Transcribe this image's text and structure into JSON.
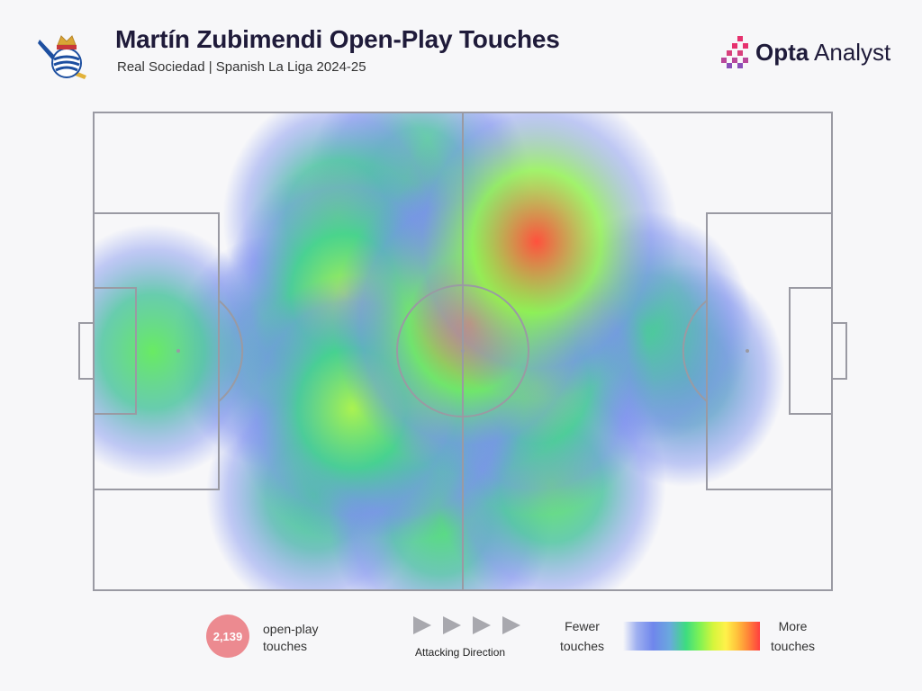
{
  "header": {
    "title": "Martín Zubimendi Open-Play Touches",
    "subtitle": "Real Sociedad | Spanish La Liga 2024-25",
    "brand_bold": "Opta",
    "brand_light": " Analyst",
    "crest_icon": "real-sociedad-crest-icon"
  },
  "chart_data": {
    "type": "heatmap",
    "title": "Martín Zubimendi Open-Play Touches",
    "subtitle": "Real Sociedad | Spanish La Liga 2024-25",
    "pitch": {
      "length": 100,
      "width": 100,
      "attacking_direction": "left-to-right"
    },
    "hotspots": [
      {
        "x": 51,
        "y": 56,
        "intensity": 0.85
      },
      {
        "x": 60,
        "y": 73,
        "intensity": 0.95
      },
      {
        "x": 42,
        "y": 38,
        "intensity": 0.55
      },
      {
        "x": 34,
        "y": 62,
        "intensity": 0.55
      },
      {
        "x": 35,
        "y": 38,
        "intensity": 0.55
      },
      {
        "x": 33,
        "y": 78,
        "intensity": 0.45
      },
      {
        "x": 60,
        "y": 43,
        "intensity": 0.5
      },
      {
        "x": 62,
        "y": 22,
        "intensity": 0.45
      },
      {
        "x": 8,
        "y": 50,
        "intensity": 0.45
      },
      {
        "x": 30,
        "y": 20,
        "intensity": 0.35
      },
      {
        "x": 25,
        "y": 50,
        "intensity": 0.3
      },
      {
        "x": 75,
        "y": 55,
        "intensity": 0.28
      },
      {
        "x": 80,
        "y": 45,
        "intensity": 0.2
      },
      {
        "x": 44,
        "y": 85,
        "intensity": 0.4
      },
      {
        "x": 47,
        "y": 15,
        "intensity": 0.4
      }
    ],
    "color_scale": {
      "colors": [
        "#f7f7f9",
        "#7b8fee",
        "#3ddc80",
        "#7ff254",
        "#fff14a",
        "#ff8838",
        "#ff3f3f"
      ],
      "low_label": "Fewer touches",
      "high_label": "More touches"
    }
  },
  "legend": {
    "touch_count": "2,139",
    "touch_label": "open-play touches",
    "attacking_direction": "Attacking Direction",
    "fewer_line1": "Fewer",
    "fewer_line2": "touches",
    "more_line1": "More",
    "more_line2": "touches"
  }
}
